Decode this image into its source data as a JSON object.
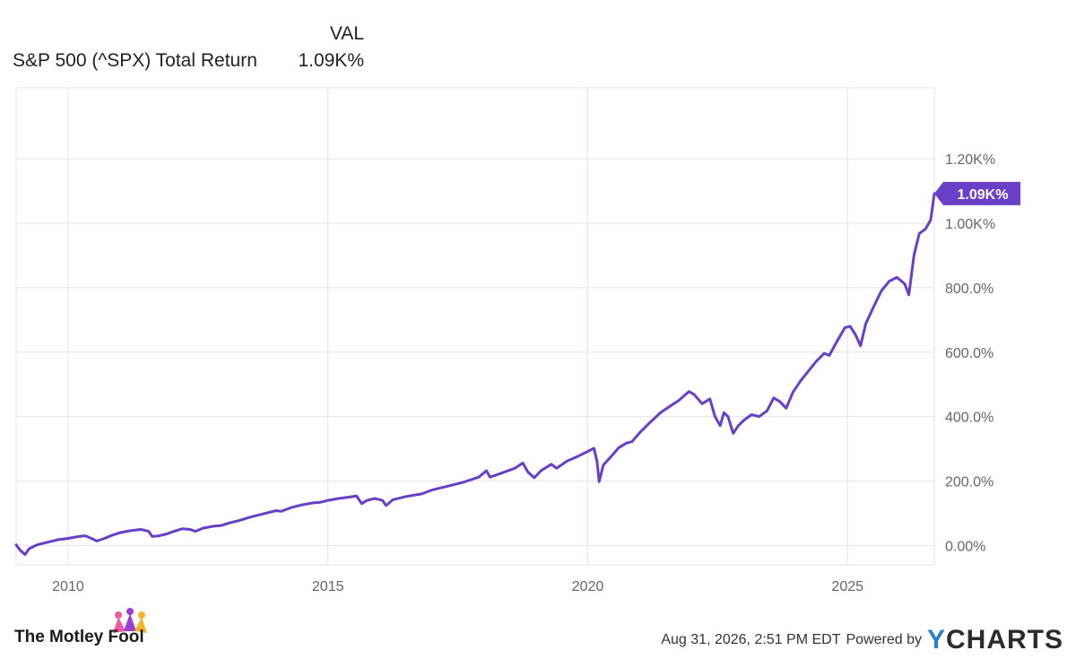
{
  "legend": {
    "header": "VAL",
    "series_name": "S&P 500 (^SPX) Total Return",
    "series_value": "1.09K%"
  },
  "footer": {
    "brand": "The Motley Fool",
    "timestamp": "Aug 31, 2026, 2:51 PM EDT",
    "powered_by": "Powered by",
    "ycharts_y": "Y",
    "ycharts_rest": "CHARTS"
  },
  "colors": {
    "line": "#6a3fc8",
    "grid": "#e4e4e4",
    "tick_text": "#666666",
    "badge": "#6a3fc8"
  },
  "chart_data": {
    "type": "line",
    "x_ticks": [
      2010,
      2015,
      2020,
      2025
    ],
    "y_ticks": [
      0,
      200,
      400,
      600,
      800,
      1000,
      1200
    ],
    "y_tick_labels": [
      "0.00%",
      "200.0%",
      "400.0%",
      "600.0%",
      "800.0%",
      "1.00K%",
      "1.20K%"
    ],
    "xlim": [
      2009.0,
      2026.67
    ],
    "ylim": [
      -60,
      1420
    ],
    "last_value_label": "1.09K%",
    "series": [
      {
        "values": [
          [
            2009.0,
            2
          ],
          [
            2009.08,
            -15
          ],
          [
            2009.17,
            -28
          ],
          [
            2009.25,
            -10
          ],
          [
            2009.4,
            2
          ],
          [
            2009.6,
            10
          ],
          [
            2009.8,
            18
          ],
          [
            2010.0,
            22
          ],
          [
            2010.2,
            28
          ],
          [
            2010.33,
            30
          ],
          [
            2010.45,
            22
          ],
          [
            2010.55,
            14
          ],
          [
            2010.7,
            22
          ],
          [
            2010.85,
            32
          ],
          [
            2011.0,
            40
          ],
          [
            2011.2,
            46
          ],
          [
            2011.4,
            50
          ],
          [
            2011.55,
            44
          ],
          [
            2011.62,
            28
          ],
          [
            2011.75,
            30
          ],
          [
            2011.9,
            36
          ],
          [
            2012.0,
            42
          ],
          [
            2012.2,
            52
          ],
          [
            2012.35,
            50
          ],
          [
            2012.45,
            44
          ],
          [
            2012.6,
            54
          ],
          [
            2012.8,
            60
          ],
          [
            2012.95,
            62
          ],
          [
            2013.1,
            70
          ],
          [
            2013.3,
            78
          ],
          [
            2013.5,
            88
          ],
          [
            2013.7,
            96
          ],
          [
            2013.9,
            104
          ],
          [
            2014.0,
            108
          ],
          [
            2014.1,
            106
          ],
          [
            2014.3,
            118
          ],
          [
            2014.5,
            126
          ],
          [
            2014.7,
            132
          ],
          [
            2014.85,
            134
          ],
          [
            2015.0,
            140
          ],
          [
            2015.2,
            146
          ],
          [
            2015.4,
            150
          ],
          [
            2015.55,
            154
          ],
          [
            2015.65,
            130
          ],
          [
            2015.75,
            140
          ],
          [
            2015.9,
            146
          ],
          [
            2016.05,
            140
          ],
          [
            2016.12,
            124
          ],
          [
            2016.25,
            142
          ],
          [
            2016.5,
            152
          ],
          [
            2016.8,
            160
          ],
          [
            2017.0,
            172
          ],
          [
            2017.3,
            184
          ],
          [
            2017.6,
            196
          ],
          [
            2017.9,
            212
          ],
          [
            2018.05,
            232
          ],
          [
            2018.12,
            212
          ],
          [
            2018.3,
            222
          ],
          [
            2018.6,
            240
          ],
          [
            2018.75,
            256
          ],
          [
            2018.85,
            228
          ],
          [
            2018.97,
            210
          ],
          [
            2019.1,
            232
          ],
          [
            2019.3,
            252
          ],
          [
            2019.4,
            240
          ],
          [
            2019.6,
            262
          ],
          [
            2019.8,
            276
          ],
          [
            2020.0,
            292
          ],
          [
            2020.12,
            302
          ],
          [
            2020.18,
            260
          ],
          [
            2020.22,
            198
          ],
          [
            2020.3,
            250
          ],
          [
            2020.45,
            276
          ],
          [
            2020.6,
            304
          ],
          [
            2020.75,
            318
          ],
          [
            2020.85,
            322
          ],
          [
            2021.0,
            350
          ],
          [
            2021.2,
            382
          ],
          [
            2021.4,
            412
          ],
          [
            2021.6,
            434
          ],
          [
            2021.75,
            450
          ],
          [
            2021.95,
            478
          ],
          [
            2022.05,
            468
          ],
          [
            2022.2,
            440
          ],
          [
            2022.35,
            455
          ],
          [
            2022.45,
            400
          ],
          [
            2022.55,
            372
          ],
          [
            2022.62,
            412
          ],
          [
            2022.7,
            400
          ],
          [
            2022.8,
            348
          ],
          [
            2022.9,
            372
          ],
          [
            2023.0,
            388
          ],
          [
            2023.15,
            406
          ],
          [
            2023.3,
            400
          ],
          [
            2023.45,
            418
          ],
          [
            2023.58,
            458
          ],
          [
            2023.7,
            446
          ],
          [
            2023.82,
            426
          ],
          [
            2023.95,
            476
          ],
          [
            2024.1,
            512
          ],
          [
            2024.25,
            542
          ],
          [
            2024.4,
            572
          ],
          [
            2024.55,
            596
          ],
          [
            2024.65,
            590
          ],
          [
            2024.8,
            634
          ],
          [
            2024.95,
            676
          ],
          [
            2025.05,
            680
          ],
          [
            2025.15,
            655
          ],
          [
            2025.25,
            620
          ],
          [
            2025.35,
            688
          ],
          [
            2025.5,
            740
          ],
          [
            2025.65,
            790
          ],
          [
            2025.8,
            820
          ],
          [
            2025.95,
            832
          ],
          [
            2026.1,
            812
          ],
          [
            2026.18,
            778
          ],
          [
            2026.28,
            902
          ],
          [
            2026.38,
            968
          ],
          [
            2026.5,
            982
          ],
          [
            2026.6,
            1010
          ],
          [
            2026.67,
            1092
          ]
        ]
      }
    ]
  }
}
